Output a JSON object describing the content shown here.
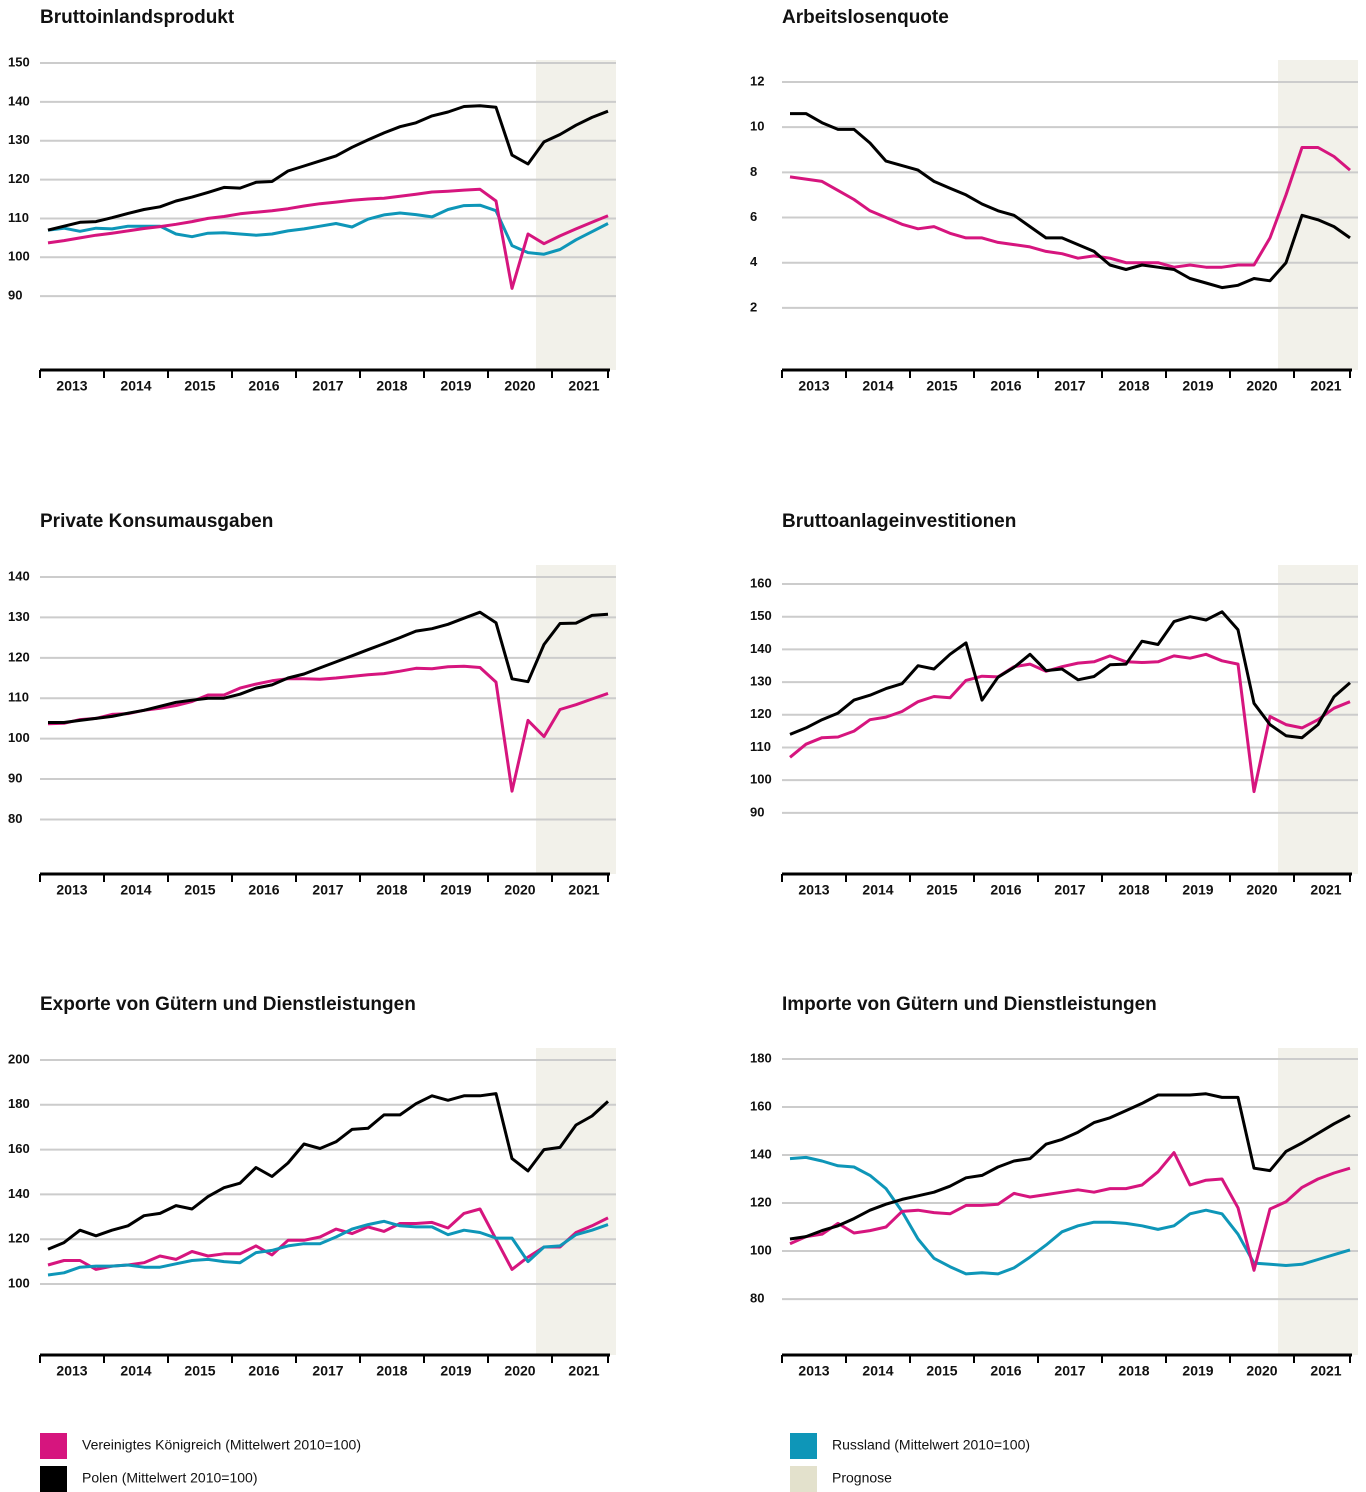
{
  "chart_data": [
    {
      "type": "line",
      "title": "Bruttoinlandsprodukt",
      "xlim": [
        2013,
        2022
      ],
      "xticks": [
        2013,
        2014,
        2015,
        2016,
        2017,
        2018,
        2019,
        2020,
        2021
      ],
      "ylim": [
        71,
        150
      ],
      "yticks": [
        90,
        100,
        110,
        120,
        130,
        140,
        150
      ],
      "grid": true,
      "forecast": {
        "from": 2020.75,
        "color": "#f2f1ea"
      },
      "x": [
        2013.125,
        2013.375,
        2013.625,
        2013.875,
        2014.125,
        2014.375,
        2014.625,
        2014.875,
        2015.125,
        2015.375,
        2015.625,
        2015.875,
        2016.125,
        2016.375,
        2016.625,
        2016.875,
        2017.125,
        2017.375,
        2017.625,
        2017.875,
        2018.125,
        2018.375,
        2018.625,
        2018.875,
        2019.125,
        2019.375,
        2019.625,
        2019.875,
        2020.125,
        2020.375,
        2020.625,
        2020.875,
        2021.125,
        2021.375,
        2021.625,
        2021.875
      ],
      "series": [
        {
          "color": "#0e96b8",
          "values": [
            107,
            107.5,
            106.7,
            107.5,
            107.3,
            108,
            108,
            108,
            106,
            105.3,
            106.2,
            106.3,
            106,
            105.7,
            106,
            106.8,
            107.3,
            108,
            108.7,
            107.8,
            109.8,
            110.9,
            111.4,
            111,
            110.4,
            112.3,
            113.3,
            113.4,
            112,
            103,
            101.2,
            100.8,
            102,
            104.5,
            106.6,
            108.7
          ]
        },
        {
          "color": "#d6157e",
          "values": [
            103.7,
            104.3,
            105,
            105.7,
            106.2,
            106.8,
            107.4,
            107.9,
            108.5,
            109.2,
            110,
            110.5,
            111.2,
            111.6,
            112,
            112.5,
            113.2,
            113.8,
            114.2,
            114.7,
            115,
            115.2,
            115.7,
            116.2,
            116.8,
            117,
            117.3,
            117.5,
            114.5,
            92,
            106,
            103.5,
            105.5,
            107.3,
            109,
            110.7
          ]
        },
        {
          "color": "#000000",
          "values": [
            107,
            108,
            109,
            109.2,
            110.2,
            111.3,
            112.3,
            113,
            114.5,
            115.5,
            116.7,
            118,
            117.8,
            119.3,
            119.5,
            122.2,
            123.5,
            124.8,
            126.1,
            128.3,
            130.2,
            132,
            133.6,
            134.6,
            136.4,
            137.4,
            138.8,
            139,
            138.6,
            126.3,
            124,
            129.7,
            131.6,
            134,
            136,
            137.6
          ]
        }
      ]
    },
    {
      "type": "line",
      "title": "Arbeitslosenquote",
      "xlim": [
        2013,
        2022
      ],
      "xticks": [
        2013,
        2014,
        2015,
        2016,
        2017,
        2018,
        2019,
        2020,
        2021
      ],
      "ylim": [
        -0.75,
        12
      ],
      "yticks": [
        2,
        4,
        6,
        8,
        10,
        12
      ],
      "grid": true,
      "forecast": {
        "from": 2020.75,
        "color": "#f2f1ea"
      },
      "x": [
        2013.125,
        2013.375,
        2013.625,
        2013.875,
        2014.125,
        2014.375,
        2014.625,
        2014.875,
        2015.125,
        2015.375,
        2015.625,
        2015.875,
        2016.125,
        2016.375,
        2016.625,
        2016.875,
        2017.125,
        2017.375,
        2017.625,
        2017.875,
        2018.125,
        2018.375,
        2018.625,
        2018.875,
        2019.125,
        2019.375,
        2019.625,
        2019.875,
        2020.125,
        2020.375,
        2020.625,
        2020.875,
        2021.125,
        2021.375,
        2021.625,
        2021.875
      ],
      "series": [
        {
          "color": "#d6157e",
          "values": [
            7.8,
            7.7,
            7.6,
            7.2,
            6.8,
            6.3,
            6,
            5.7,
            5.5,
            5.6,
            5.3,
            5.1,
            5.1,
            4.9,
            4.8,
            4.7,
            4.5,
            4.4,
            4.2,
            4.3,
            4.2,
            4,
            4,
            4,
            3.8,
            3.9,
            3.8,
            3.8,
            3.9,
            3.9,
            5.1,
            7,
            9.1,
            9.1,
            8.7,
            8.1
          ]
        },
        {
          "color": "#000000",
          "values": [
            10.6,
            10.6,
            10.2,
            9.9,
            9.9,
            9.3,
            8.5,
            8.3,
            8.1,
            7.6,
            7.3,
            7,
            6.6,
            6.3,
            6.1,
            5.6,
            5.1,
            5.1,
            4.8,
            4.5,
            3.9,
            3.7,
            3.9,
            3.8,
            3.7,
            3.3,
            3.1,
            2.9,
            3,
            3.3,
            3.2,
            4,
            6.1,
            5.9,
            5.6,
            5.1
          ]
        }
      ]
    },
    {
      "type": "line",
      "title": "Private Konsumausgaben",
      "xlim": [
        2013,
        2022
      ],
      "xticks": [
        2013,
        2014,
        2015,
        2016,
        2017,
        2018,
        2019,
        2020,
        2021
      ],
      "ylim": [
        66.5,
        140
      ],
      "yticks": [
        80,
        90,
        100,
        110,
        120,
        130,
        140
      ],
      "grid": true,
      "forecast": {
        "from": 2020.75,
        "color": "#f2f1ea"
      },
      "x": [
        2013.125,
        2013.375,
        2013.625,
        2013.875,
        2014.125,
        2014.375,
        2014.625,
        2014.875,
        2015.125,
        2015.375,
        2015.625,
        2015.875,
        2016.125,
        2016.375,
        2016.625,
        2016.875,
        2017.125,
        2017.375,
        2017.625,
        2017.875,
        2018.125,
        2018.375,
        2018.625,
        2018.875,
        2019.125,
        2019.375,
        2019.625,
        2019.875,
        2020.125,
        2020.375,
        2020.625,
        2020.875,
        2021.125,
        2021.375,
        2021.625,
        2021.875
      ],
      "series": [
        {
          "color": "#d6157e",
          "values": [
            103.7,
            103.8,
            104.7,
            105,
            106,
            106.2,
            107,
            107.5,
            108.2,
            109.2,
            110.8,
            110.8,
            112.5,
            113.5,
            114.3,
            114.8,
            114.8,
            114.7,
            115,
            115.4,
            115.8,
            116.1,
            116.7,
            117.4,
            117.3,
            117.8,
            117.9,
            117.6,
            114,
            87,
            104.5,
            100.5,
            107.2,
            108.4,
            109.8,
            111.2
          ]
        },
        {
          "color": "#000000",
          "values": [
            104,
            104,
            104.5,
            105,
            105.5,
            106.3,
            107,
            108,
            109,
            109.5,
            110,
            110,
            111,
            112.5,
            113.3,
            115,
            116,
            117.5,
            119,
            120.5,
            122,
            123.5,
            125,
            126.6,
            127.2,
            128.3,
            129.8,
            131.3,
            128.7,
            114.8,
            114.1,
            123.3,
            128.5,
            128.6,
            130.5,
            130.8
          ]
        }
      ]
    },
    {
      "type": "line",
      "title": "Bruttoanlageinvestitionen",
      "xlim": [
        2013,
        2022
      ],
      "xticks": [
        2013,
        2014,
        2015,
        2016,
        2017,
        2018,
        2019,
        2020,
        2021
      ],
      "ylim": [
        71.3,
        160
      ],
      "yticks": [
        90,
        100,
        110,
        120,
        130,
        140,
        150,
        160
      ],
      "grid": true,
      "forecast": {
        "from": 2020.75,
        "color": "#f2f1ea"
      },
      "x": [
        2013.125,
        2013.375,
        2013.625,
        2013.875,
        2014.125,
        2014.375,
        2014.625,
        2014.875,
        2015.125,
        2015.375,
        2015.625,
        2015.875,
        2016.125,
        2016.375,
        2016.625,
        2016.875,
        2017.125,
        2017.375,
        2017.625,
        2017.875,
        2018.125,
        2018.375,
        2018.625,
        2018.875,
        2019.125,
        2019.375,
        2019.625,
        2019.875,
        2020.125,
        2020.375,
        2020.625,
        2020.875,
        2021.125,
        2021.375,
        2021.625,
        2021.875
      ],
      "series": [
        {
          "color": "#d6157e",
          "values": [
            107,
            111,
            113,
            113.2,
            115,
            118.5,
            119.3,
            121,
            124,
            125.6,
            125.2,
            130.5,
            131.8,
            131.6,
            134.7,
            135.5,
            133.3,
            134.7,
            135.8,
            136.2,
            138,
            136.2,
            136,
            136.2,
            138,
            137.3,
            138.5,
            136.5,
            135.5,
            96.5,
            119.5,
            117,
            116,
            118.5,
            122,
            124
          ]
        },
        {
          "color": "#000000",
          "values": [
            114,
            116,
            118.5,
            120.5,
            124.5,
            126,
            128,
            129.5,
            135,
            134,
            138.5,
            142,
            124.5,
            131.5,
            134.5,
            138.5,
            133.5,
            134,
            130.7,
            131.7,
            135.3,
            135.5,
            142.5,
            141.5,
            148.5,
            150,
            149,
            151.5,
            146,
            123.5,
            117,
            113.6,
            113,
            117,
            125.5,
            129.8
          ]
        }
      ]
    },
    {
      "type": "line",
      "title": "Exporte von Gütern und Dienstleistungen",
      "xlim": [
        2013,
        2022
      ],
      "xticks": [
        2013,
        2014,
        2015,
        2016,
        2017,
        2018,
        2019,
        2020,
        2021
      ],
      "ylim": [
        68.3,
        200
      ],
      "yticks": [
        100,
        120,
        140,
        160,
        180,
        200
      ],
      "grid": true,
      "forecast": {
        "from": 2020.75,
        "color": "#f2f1ea"
      },
      "x": [
        2013.125,
        2013.375,
        2013.625,
        2013.875,
        2014.125,
        2014.375,
        2014.625,
        2014.875,
        2015.125,
        2015.375,
        2015.625,
        2015.875,
        2016.125,
        2016.375,
        2016.625,
        2016.875,
        2017.125,
        2017.375,
        2017.625,
        2017.875,
        2018.125,
        2018.375,
        2018.625,
        2018.875,
        2019.125,
        2019.375,
        2019.625,
        2019.875,
        2020.125,
        2020.375,
        2020.625,
        2020.875,
        2021.125,
        2021.375,
        2021.625,
        2021.875
      ],
      "series": [
        {
          "color": "#d6157e",
          "values": [
            108.5,
            110.5,
            110.5,
            106.5,
            108,
            108.5,
            109.5,
            112.5,
            111,
            114.5,
            112.5,
            113.5,
            113.5,
            117,
            113,
            119.5,
            119.5,
            121,
            124.5,
            122.5,
            125.5,
            123.5,
            127,
            127,
            127.5,
            125,
            131.5,
            133.5,
            120,
            106.5,
            112,
            116.5,
            116.5,
            123,
            126,
            129.5
          ]
        },
        {
          "color": "#0e96b8",
          "values": [
            104,
            105,
            107.5,
            108,
            108,
            108.5,
            107.5,
            107.5,
            109,
            110.5,
            111,
            110,
            109.5,
            114,
            115,
            117,
            118,
            118,
            121,
            124.5,
            126.5,
            128,
            126,
            125.5,
            125.5,
            122,
            124,
            123,
            120.5,
            120.5,
            110,
            116.5,
            117,
            122,
            124,
            126.5
          ]
        },
        {
          "color": "#000000",
          "values": [
            115.5,
            118.5,
            124,
            121.5,
            124,
            126,
            130.5,
            131.5,
            135,
            133.5,
            139,
            143,
            145,
            152,
            148,
            154,
            162.5,
            160.5,
            163.5,
            169,
            169.5,
            175.5,
            175.5,
            180.5,
            184,
            182,
            184,
            184,
            185,
            156,
            150.5,
            160,
            161,
            171,
            175,
            181.5
          ]
        }
      ]
    },
    {
      "type": "line",
      "title": "Importe von Gütern und Dienstleistungen",
      "xlim": [
        2013,
        2022
      ],
      "xticks": [
        2013,
        2014,
        2015,
        2016,
        2017,
        2018,
        2019,
        2020,
        2021
      ],
      "ylim": [
        56.7,
        180
      ],
      "yticks": [
        80,
        100,
        120,
        140,
        160,
        180
      ],
      "grid": true,
      "forecast": {
        "from": 2020.75,
        "color": "#f2f1ea"
      },
      "x": [
        2013.125,
        2013.375,
        2013.625,
        2013.875,
        2014.125,
        2014.375,
        2014.625,
        2014.875,
        2015.125,
        2015.375,
        2015.625,
        2015.875,
        2016.125,
        2016.375,
        2016.625,
        2016.875,
        2017.125,
        2017.375,
        2017.625,
        2017.875,
        2018.125,
        2018.375,
        2018.625,
        2018.875,
        2019.125,
        2019.375,
        2019.625,
        2019.875,
        2020.125,
        2020.375,
        2020.625,
        2020.875,
        2021.125,
        2021.375,
        2021.625,
        2021.875
      ],
      "series": [
        {
          "color": "#0e96b8",
          "values": [
            138.5,
            139,
            137.5,
            135.5,
            135,
            131.5,
            126,
            116.5,
            105,
            97,
            93.5,
            90.5,
            91,
            90.5,
            93,
            97.5,
            102.5,
            108,
            110.5,
            112,
            112,
            111.5,
            110.5,
            109,
            110.5,
            115.5,
            117,
            115.5,
            107,
            95,
            94.5,
            94,
            94.5,
            96.5,
            98.5,
            100.5
          ]
        },
        {
          "color": "#d6157e",
          "values": [
            103,
            106,
            107,
            111.5,
            107.5,
            108.5,
            110,
            116.5,
            117,
            116,
            115.5,
            119,
            119,
            119.5,
            124,
            122.5,
            123.5,
            124.5,
            125.5,
            124.5,
            126,
            126,
            127.5,
            133,
            141,
            127.5,
            129.5,
            130,
            118,
            92,
            117.5,
            120.5,
            126.5,
            130,
            132.5,
            134.5
          ]
        },
        {
          "color": "#000000",
          "values": [
            105,
            106,
            108.5,
            110.5,
            113.5,
            117,
            119.5,
            121.5,
            123,
            124.5,
            127,
            130.5,
            131.5,
            135,
            137.5,
            138.5,
            144.5,
            146.5,
            149.5,
            153.5,
            155.5,
            158.5,
            161.5,
            165,
            165,
            165,
            165.5,
            164,
            164,
            134.5,
            133.5,
            141.5,
            145,
            149,
            153,
            156.5
          ]
        }
      ]
    }
  ],
  "legend": [
    {
      "name": "Vereinigtes Königreich (Mittelwert 2010=100)",
      "color": "#d6157e"
    },
    {
      "name": "Polen (Mittelwert 2010=100)",
      "color": "#000000"
    },
    {
      "name": "Russland (Mittelwert 2010=100)",
      "color": "#0e96b8"
    },
    {
      "name": "Prognose",
      "color": "#e3e1cc"
    }
  ]
}
